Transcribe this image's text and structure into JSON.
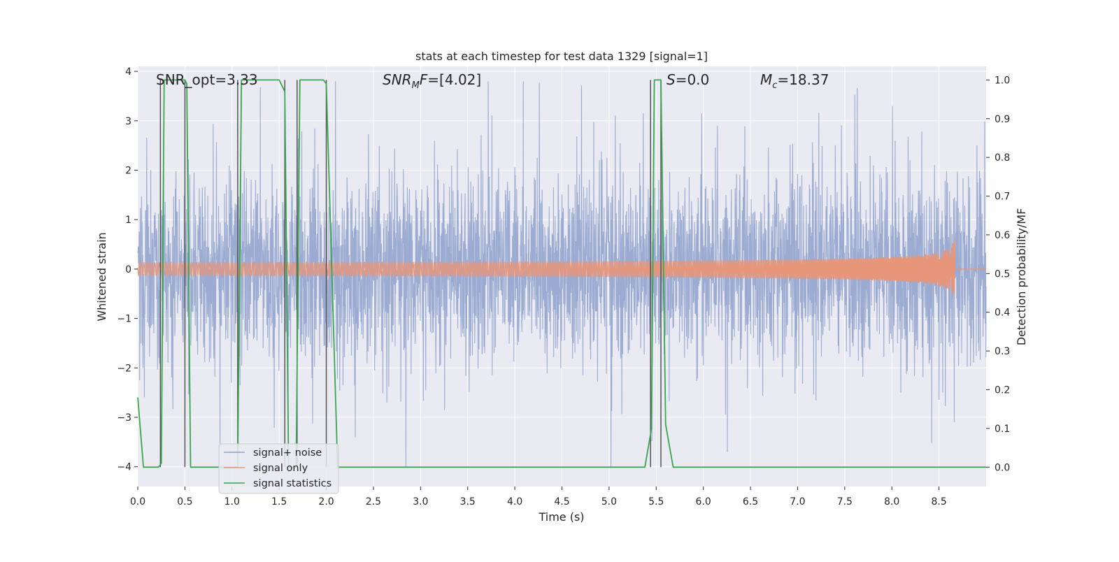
{
  "chart_data": {
    "type": "line",
    "title": "stats at each timestep for test data 1329 [signal=1]",
    "xlabel": "Time (s)",
    "ylabel_left": "Whitened strain",
    "ylabel_right": "Detection probability/MF",
    "xlim": [
      0.0,
      9.0
    ],
    "ylim_left": [
      -4.4,
      4.1
    ],
    "ylim_right": [
      -0.05,
      1.035
    ],
    "xticks": [
      0.0,
      0.5,
      1.0,
      1.5,
      2.0,
      2.5,
      3.0,
      3.5,
      4.0,
      4.5,
      5.0,
      5.5,
      6.0,
      6.5,
      7.0,
      7.5,
      8.0,
      8.5
    ],
    "xtick_labels": [
      "0.0",
      "0.5",
      "1.0",
      "1.5",
      "2.0",
      "2.5",
      "3.0",
      "3.5",
      "4.0",
      "4.5",
      "5.0",
      "5.5",
      "6.0",
      "6.5",
      "7.0",
      "7.5",
      "8.0",
      "8.5"
    ],
    "yticks_left": [
      -4,
      -3,
      -2,
      -1,
      0,
      1,
      2,
      3,
      4
    ],
    "ytick_labels_left": [
      "−4",
      "−3",
      "−2",
      "−1",
      "0",
      "1",
      "2",
      "3",
      "4"
    ],
    "yticks_right": [
      0.0,
      0.1,
      0.2,
      0.3,
      0.4,
      0.5,
      0.6,
      0.7,
      0.8,
      0.9,
      1.0
    ],
    "ytick_labels_right": [
      "0.0",
      "0.1",
      "0.2",
      "0.3",
      "0.4",
      "0.5",
      "0.6",
      "0.7",
      "0.8",
      "0.9",
      "1.0"
    ],
    "grid": true,
    "legend_position": "lower-left",
    "annotations": [
      {
        "text": "SNR_opt=3.33",
        "x": 0.2
      },
      {
        "text": "SNR_MF=[4.02]",
        "x": 2.6
      },
      {
        "text": "S=0.0",
        "x": 5.6
      },
      {
        "text": "M_c=18.37",
        "x": 6.6
      }
    ],
    "series": [
      {
        "name": "signal+ noise",
        "axis": "left",
        "color": "#8da0cb",
        "kind": "noise",
        "typical_range": [
          -2.0,
          2.2
        ],
        "peak_range": [
          -4.0,
          3.8
        ]
      },
      {
        "name": "signal only",
        "axis": "left",
        "color": "#e8967a",
        "kind": "chirp",
        "t_merge": 8.67,
        "peak_amplitude": 0.68
      },
      {
        "name": "signal statistics",
        "axis": "right",
        "color": "#3aa64f",
        "x": [
          0.0,
          0.06,
          0.22,
          0.25,
          0.28,
          0.5,
          0.52,
          0.56,
          1.06,
          1.1,
          1.5,
          1.56,
          1.6,
          1.68,
          1.72,
          1.97,
          2.0,
          2.12,
          2.4,
          5.38,
          5.45,
          5.48,
          5.55,
          5.6,
          5.68,
          9.0
        ],
        "y": [
          0.18,
          0.0,
          0.0,
          0.01,
          1.0,
          1.0,
          0.99,
          0.0,
          0.0,
          1.0,
          1.0,
          0.97,
          0.0,
          0.0,
          1.0,
          1.0,
          0.99,
          0.0,
          0.0,
          0.0,
          0.1,
          1.0,
          1.0,
          0.11,
          0.0,
          0.0
        ]
      }
    ],
    "vlines": [
      0.24,
      0.5,
      1.06,
      1.56,
      1.69,
      2.0,
      5.44,
      5.55
    ],
    "vline_color": "#555555",
    "vline_range_right": [
      0.0,
      1.0
    ]
  }
}
